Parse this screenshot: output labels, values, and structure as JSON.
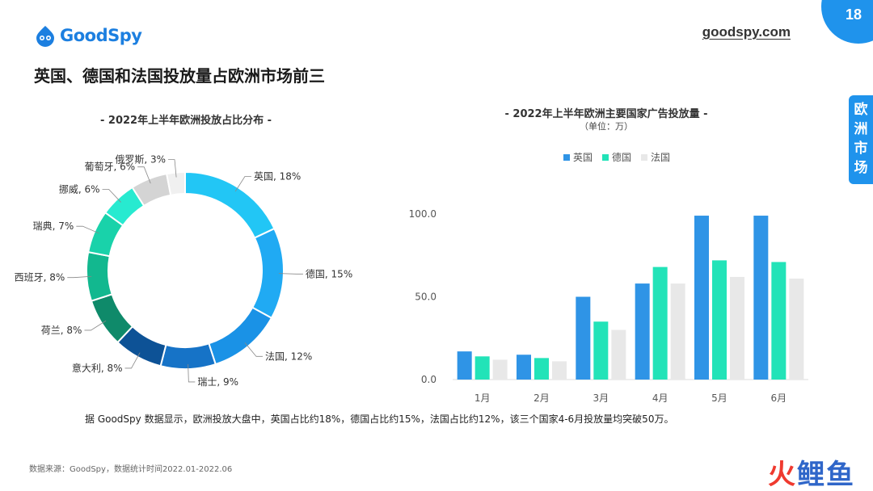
{
  "header": {
    "brand": "GoodSpy",
    "site": "goodspy.com",
    "page_number": "18",
    "section_tab": [
      "欧",
      "洲",
      "市",
      "场"
    ]
  },
  "headline": "英国、德国和法国投放量占欧洲市场前三",
  "footnote": "据 GoodSpy 数据显示，欧洲投放大盘中，英国占比约18%，德国占比约15%，法国占比约12%，该三个国家4-6月投放量均突破50万。",
  "source": "数据来源：GoodSpy，数据统计时间2022.01-2022.06",
  "watermark": {
    "part_a": "火",
    "part_b": "鲤鱼"
  },
  "colors": {
    "accent": "#1f93ec",
    "uk": "#2f94e6",
    "de": "#22e3b8",
    "fr": "#e6e6e6"
  },
  "chart_data": [
    {
      "type": "pie",
      "donut": true,
      "title": "- 2022年上半年欧洲投放占比分布 -",
      "slices": [
        {
          "label": "英国",
          "value": 18,
          "text": "英国, 18%",
          "color": "#22c6f5"
        },
        {
          "label": "德国",
          "value": 15,
          "text": "德国, 15%",
          "color": "#20aaf3"
        },
        {
          "label": "法国",
          "value": 12,
          "text": "法国, 12%",
          "color": "#1a92e6"
        },
        {
          "label": "瑞士",
          "value": 9,
          "text": "瑞士, 9%",
          "color": "#1673c7"
        },
        {
          "label": "意大利",
          "value": 8,
          "text": "意大利, 8%",
          "color": "#0d5296"
        },
        {
          "label": "荷兰",
          "value": 8,
          "text": "荷兰, 8%",
          "color": "#0f8a6a"
        },
        {
          "label": "西班牙",
          "value": 8,
          "text": "西班牙, 8%",
          "color": "#12b88f"
        },
        {
          "label": "瑞典",
          "value": 7,
          "text": "瑞典, 7%",
          "color": "#19d2aa"
        },
        {
          "label": "挪威",
          "value": 6,
          "text": "挪威, 6%",
          "color": "#27ead0"
        },
        {
          "label": "葡萄牙",
          "value": 6,
          "text": "葡萄牙, 6%",
          "color": "#d4d4d4"
        },
        {
          "label": "俄罗斯",
          "value": 3,
          "text": "俄罗斯, 3%",
          "color": "#f0f0f0"
        }
      ]
    },
    {
      "type": "bar",
      "title": "- 2022年上半年欧洲主要国家广告投放量 -",
      "subtitle": "（单位：万）",
      "categories": [
        "1月",
        "2月",
        "3月",
        "4月",
        "5月",
        "6月"
      ],
      "series": [
        {
          "name": "英国",
          "values": [
            17,
            15,
            50,
            58,
            99,
            99
          ],
          "color": "#2f94e6"
        },
        {
          "name": "德国",
          "values": [
            14,
            13,
            35,
            68,
            72,
            71
          ],
          "color": "#22e3b8"
        },
        {
          "name": "法国",
          "values": [
            12,
            11,
            30,
            58,
            62,
            61
          ],
          "color": "#e8e8e8"
        }
      ],
      "yticks": [
        "0.0",
        "50.0",
        "100.0"
      ],
      "ylim": [
        0,
        100
      ],
      "legend": "top",
      "grid": false
    }
  ]
}
